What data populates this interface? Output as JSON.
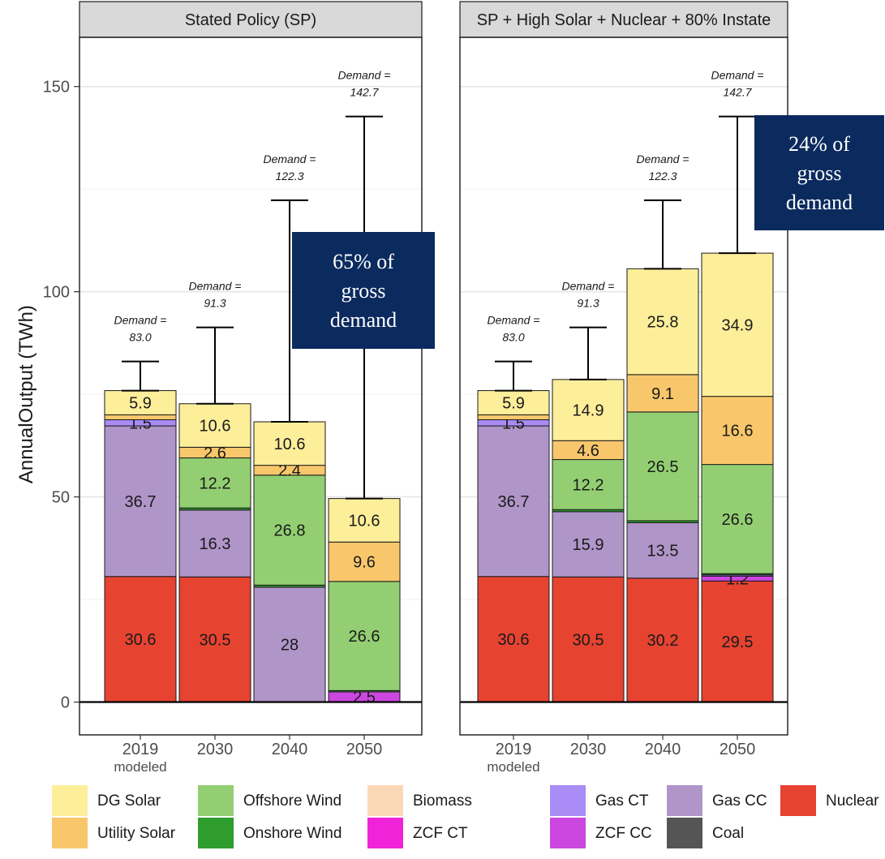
{
  "chart_data": {
    "type": "bar",
    "stacked": true,
    "ylabel": "AnnualOutput (TWh)",
    "ylim": [
      -8,
      162
    ],
    "yticks": [
      0,
      50,
      100,
      150
    ],
    "grid": true,
    "categories": [
      "2019",
      "2030",
      "2040",
      "2050"
    ],
    "category_sublabels": [
      "modeled",
      "",
      "",
      ""
    ],
    "stack_order": [
      "Nuclear",
      "ZCF CC",
      "Gas CC",
      "Gas CT",
      "Coal",
      "ZCF CT",
      "Onshore Wind",
      "Offshore Wind",
      "Biomass",
      "Utility Solar",
      "DG Solar"
    ],
    "colors": {
      "DG Solar": "#FDEE9A",
      "Utility Solar": "#F8C76B",
      "Offshore Wind": "#93CF72",
      "Onshore Wind": "#2E9D2E",
      "Biomass": "#FCD9B6",
      "ZCF CT": "#F023D8",
      "Gas CT": "#A98CF5",
      "ZCF CC": "#CC47E0",
      "Gas CC": "#B095C9",
      "Coal": "#555555",
      "Nuclear": "#E64331"
    },
    "panels": [
      {
        "title": "Stated Policy (SP)",
        "demand": [
          83.0,
          91.3,
          122.3,
          142.7
        ],
        "demand_labels": [
          "83.0",
          "91.3",
          "122.3",
          "142.7"
        ],
        "demand_prefix": "Demand =",
        "series": [
          {
            "name": "Nuclear",
            "values": [
              30.6,
              30.5,
              0,
              0
            ],
            "labels": [
              "30.6",
              "30.5",
              "",
              ""
            ]
          },
          {
            "name": "ZCF CC",
            "values": [
              0,
              0,
              0,
              2.5
            ],
            "labels": [
              "",
              "",
              "",
              "2.5"
            ]
          },
          {
            "name": "Gas CC",
            "values": [
              36.7,
              16.3,
              28,
              0
            ],
            "labels": [
              "36.7",
              "16.3",
              "28",
              ""
            ]
          },
          {
            "name": "Gas CT",
            "values": [
              1.5,
              0,
              0,
              0
            ],
            "labels": [
              "1.5",
              "",
              "",
              ""
            ]
          },
          {
            "name": "Coal",
            "values": [
              0,
              0,
              0,
              0
            ],
            "labels": [
              "",
              "",
              "",
              ""
            ]
          },
          {
            "name": "ZCF CT",
            "values": [
              0,
              0,
              0,
              0
            ],
            "labels": [
              "",
              "",
              "",
              ""
            ]
          },
          {
            "name": "Onshore Wind",
            "values": [
              0,
              0.5,
              0.5,
              0.3
            ],
            "labels": [
              "",
              "",
              "",
              ""
            ]
          },
          {
            "name": "Offshore Wind",
            "values": [
              0,
              12.2,
              26.8,
              26.6
            ],
            "labels": [
              "",
              "12.2",
              "26.8",
              "26.6"
            ]
          },
          {
            "name": "Biomass",
            "values": [
              0,
              0,
              0,
              0
            ],
            "labels": [
              "",
              "",
              "",
              ""
            ]
          },
          {
            "name": "Utility Solar",
            "values": [
              1.2,
              2.6,
              2.4,
              9.6
            ],
            "labels": [
              "",
              "2.6",
              "2.4",
              "9.6"
            ]
          },
          {
            "name": "DG Solar",
            "values": [
              5.9,
              10.6,
              10.6,
              10.6
            ],
            "labels": [
              "5.9",
              "10.6",
              "10.6",
              "10.6"
            ]
          }
        ],
        "callout": {
          "lines": [
            "65% of",
            "gross",
            "demand"
          ]
        }
      },
      {
        "title": "SP + High Solar + Nuclear + 80% Instate",
        "demand": [
          83.0,
          91.3,
          122.3,
          142.7
        ],
        "demand_labels": [
          "83.0",
          "91.3",
          "122.3",
          "142.7"
        ],
        "demand_prefix": "Demand =",
        "series": [
          {
            "name": "Nuclear",
            "values": [
              30.6,
              30.5,
              30.2,
              29.5
            ],
            "labels": [
              "30.6",
              "30.5",
              "30.2",
              "29.5"
            ]
          },
          {
            "name": "ZCF CC",
            "values": [
              0,
              0,
              0,
              1.2
            ],
            "labels": [
              "",
              "",
              "",
              "1.2"
            ]
          },
          {
            "name": "Gas CC",
            "values": [
              36.7,
              15.9,
              13.5,
              0
            ],
            "labels": [
              "36.7",
              "15.9",
              "13.5",
              ""
            ]
          },
          {
            "name": "Gas CT",
            "values": [
              1.5,
              0,
              0,
              0.3
            ],
            "labels": [
              "1.5",
              "",
              "",
              ""
            ]
          },
          {
            "name": "Coal",
            "values": [
              0,
              0,
              0,
              0
            ],
            "labels": [
              "",
              "",
              "",
              ""
            ]
          },
          {
            "name": "ZCF CT",
            "values": [
              0,
              0,
              0,
              0
            ],
            "labels": [
              "",
              "",
              "",
              ""
            ]
          },
          {
            "name": "Onshore Wind",
            "values": [
              0,
              0.5,
              0.5,
              0.3
            ],
            "labels": [
              "",
              "",
              "",
              ""
            ]
          },
          {
            "name": "Offshore Wind",
            "values": [
              0,
              12.2,
              26.5,
              26.6
            ],
            "labels": [
              "",
              "12.2",
              "26.5",
              "26.6"
            ]
          },
          {
            "name": "Biomass",
            "values": [
              0,
              0,
              0,
              0
            ],
            "labels": [
              "",
              "",
              "",
              ""
            ]
          },
          {
            "name": "Utility Solar",
            "values": [
              1.2,
              4.6,
              9.1,
              16.6
            ],
            "labels": [
              "",
              "4.6",
              "9.1",
              "16.6"
            ]
          },
          {
            "name": "DG Solar",
            "values": [
              5.9,
              14.9,
              25.8,
              34.9
            ],
            "labels": [
              "5.9",
              "14.9",
              "25.8",
              "34.9"
            ]
          }
        ],
        "callout": {
          "lines": [
            "24% of",
            "gross",
            "demand"
          ]
        }
      }
    ],
    "legend": {
      "placement": "bottom",
      "groups": [
        [
          "DG Solar",
          "Utility Solar",
          "Offshore Wind",
          "Onshore Wind",
          "Biomass",
          "ZCF CT"
        ],
        [
          "Gas CT",
          "ZCF CC",
          "Gas CC",
          "Coal",
          "Nuclear"
        ]
      ]
    }
  }
}
